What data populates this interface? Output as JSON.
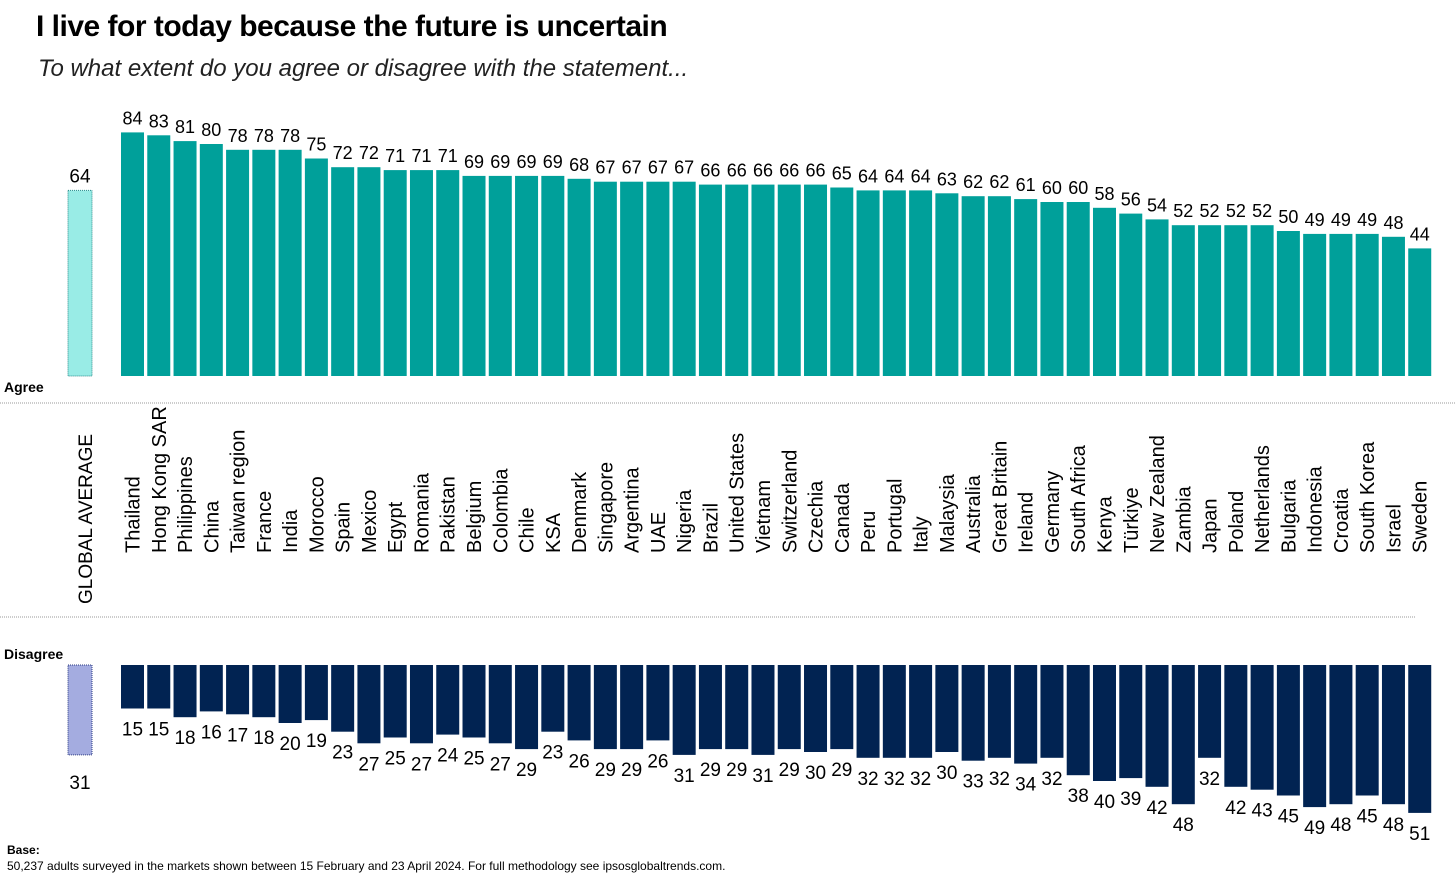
{
  "chart_data": {
    "type": "bar",
    "title": "I live for today because the future is uncertain",
    "subtitle": "To what extent do you agree or disagree with the statement...",
    "categories": [
      "Thailand",
      "Hong Kong SAR",
      "Philippines",
      "China",
      "Taiwan region",
      "France",
      "India",
      "Morocco",
      "Spain",
      "Mexico",
      "Egypt",
      "Romania",
      "Pakistan",
      "Belgium",
      "Colombia",
      "Chile",
      "KSA",
      "Denmark",
      "Singapore",
      "Argentina",
      "UAE",
      "Nigeria",
      "Brazil",
      "United States",
      "Vietnam",
      "Switzerland",
      "Czechia",
      "Canada",
      "Peru",
      "Portugal",
      "Italy",
      "Malaysia",
      "Australia",
      "Great Britain",
      "Ireland",
      "Germany",
      "South Africa",
      "Kenya",
      "Türkiye",
      "New Zealand",
      "Zambia",
      "Japan",
      "Poland",
      "Netherlands",
      "Bulgaria",
      "Indonesia",
      "Croatia",
      "South Korea",
      "Israel",
      "Sweden"
    ],
    "series": [
      {
        "name": "Agree",
        "values": [
          84,
          83,
          81,
          80,
          78,
          78,
          78,
          75,
          72,
          72,
          71,
          71,
          71,
          69,
          69,
          69,
          69,
          68,
          67,
          67,
          67,
          67,
          66,
          66,
          66,
          66,
          66,
          65,
          64,
          64,
          64,
          63,
          62,
          62,
          61,
          60,
          60,
          58,
          56,
          54,
          52,
          52,
          52,
          52,
          50,
          49,
          49,
          49,
          48,
          44
        ],
        "color": "#00A09A"
      },
      {
        "name": "Disagree",
        "values": [
          15,
          15,
          18,
          16,
          17,
          18,
          20,
          19,
          23,
          27,
          25,
          27,
          24,
          25,
          27,
          29,
          23,
          26,
          29,
          29,
          26,
          31,
          29,
          29,
          31,
          29,
          30,
          29,
          32,
          32,
          32,
          30,
          33,
          32,
          34,
          32,
          38,
          40,
          39,
          42,
          48,
          32,
          42,
          43,
          45,
          49,
          48,
          45,
          48,
          51
        ],
        "color": "#012352"
      }
    ],
    "global_average": {
      "label": "GLOBAL AVERAGE",
      "agree": 64,
      "disagree": 31,
      "agree_color": "#99ECE6",
      "disagree_color": "#A4ACE0"
    },
    "ylim": [
      0,
      100
    ]
  },
  "footer": {
    "base_label": "Base:",
    "base_text": "50,237 adults surveyed in the markets shown between 15 February and 23 April 2024. For full methodology see ipsosglobaltrends.com."
  }
}
